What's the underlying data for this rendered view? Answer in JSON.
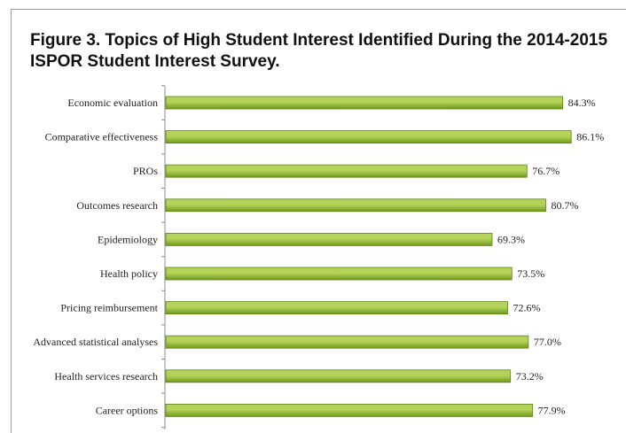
{
  "figure": {
    "title": "Figure 3. Topics of High Student Interest Identified During the 2014-2015 ISPOR Student Interest Survey."
  },
  "chart_data": {
    "type": "bar",
    "orientation": "horizontal",
    "categories": [
      "Economic evaluation",
      "Comparative effectiveness",
      "PROs",
      "Outcomes research",
      "Epidemiology",
      "Health policy",
      "Pricing reimbursement",
      "Advanced statistical analyses",
      "Health services research",
      "Career options"
    ],
    "values": [
      84.3,
      86.1,
      76.7,
      80.7,
      69.3,
      73.5,
      72.6,
      77.0,
      73.2,
      77.9
    ],
    "labels": [
      "84.3%",
      "86.1%",
      "76.7%",
      "80.7%",
      "69.3%",
      "73.5%",
      "72.6%",
      "77.0%",
      "73.2%",
      "77.9%"
    ],
    "xlim": [
      0,
      100
    ],
    "grid": false,
    "legend": "none",
    "colors": {
      "bar_light": "#b5d35a",
      "bar_dark": "#6f9a1c",
      "bar_edge": "#5e8418",
      "axis": "#8c8c8c",
      "text": "#222222"
    }
  }
}
